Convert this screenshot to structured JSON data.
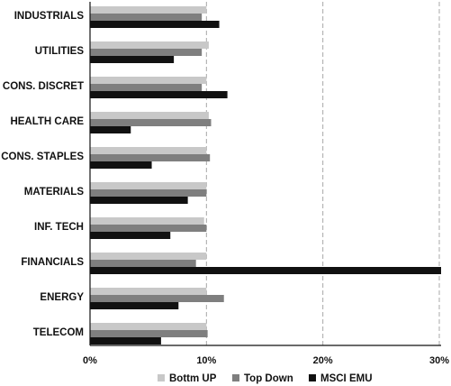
{
  "chart_data": {
    "type": "bar",
    "orientation": "horizontal",
    "categories": [
      "INDUSTRIALS",
      "UTILITIES",
      "CONS. DISCRET",
      "HEALTH CARE",
      "CONS. STAPLES",
      "MATERIALS",
      "INF. TECH",
      "FINANCIALS",
      "ENERGY",
      "TELECOM"
    ],
    "series": [
      {
        "name": "Bottm UP",
        "color": "#c8c8c8",
        "values": [
          10,
          10.2,
          10,
          10.2,
          10,
          10,
          9.8,
          10,
          10,
          10
        ]
      },
      {
        "name": "Top Down",
        "color": "#7f7f7f",
        "values": [
          9.6,
          9.6,
          9.6,
          10.4,
          10.3,
          10,
          10,
          9.1,
          11.5,
          10.1
        ]
      },
      {
        "name": "MSCI EMU",
        "color": "#111111",
        "values": [
          11.1,
          7.2,
          11.8,
          3.5,
          5.3,
          8.4,
          6.9,
          30.5,
          7.6,
          6.1
        ]
      }
    ],
    "xlim": [
      0,
      30
    ],
    "xticks": [
      0,
      10,
      20,
      30
    ],
    "xtick_labels": [
      "0%",
      "10%",
      "20%",
      "30%"
    ],
    "grid": "vertical dashed",
    "legend_position": "bottom"
  }
}
